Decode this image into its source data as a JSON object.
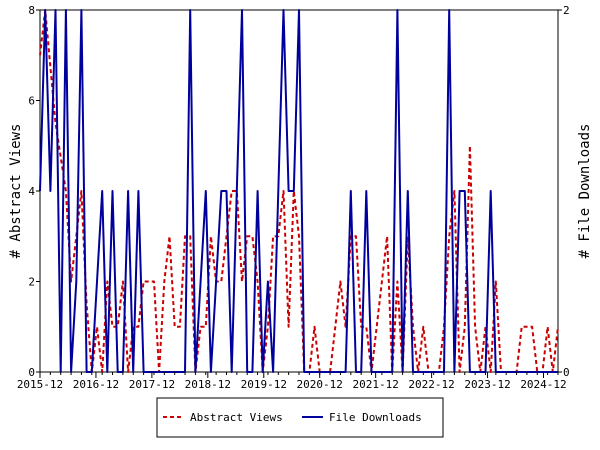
{
  "chart_data": {
    "type": "line",
    "title": "",
    "xlabel": "",
    "ylabel_left": "# Abstract Views",
    "ylabel_right": "# File Downloads",
    "x_ticks": [
      "2015-12",
      "2016-12",
      "2017-12",
      "2018-12",
      "2019-12",
      "2020-12",
      "2021-12",
      "2022-12",
      "2023-12",
      "2024-12"
    ],
    "ylim_left": [
      0,
      8
    ],
    "ylim_right": [
      0,
      2
    ],
    "y_ticks_left": [
      "0",
      "2",
      "4",
      "6",
      "8"
    ],
    "y_ticks_right": [
      "0",
      "2"
    ],
    "grid": false,
    "legend_position": "bottom",
    "series": [
      {
        "name": "Abstract Views",
        "axis": "left",
        "color": "#cc0000",
        "style": "dashed",
        "points": [
          [
            0,
            7
          ],
          [
            0.5,
            8
          ],
          [
            1.5,
            5.5
          ],
          [
            2.5,
            4
          ],
          [
            3,
            2
          ],
          [
            3.5,
            3
          ],
          [
            4,
            4
          ],
          [
            4.5,
            1.5
          ],
          [
            5,
            0
          ],
          [
            5.5,
            1
          ],
          [
            6,
            0
          ],
          [
            6.5,
            2
          ],
          [
            7,
            1
          ],
          [
            7.5,
            1
          ],
          [
            8,
            2
          ],
          [
            8.5,
            0
          ],
          [
            9,
            1
          ],
          [
            9.5,
            1
          ],
          [
            10,
            2
          ],
          [
            11,
            2
          ],
          [
            11.5,
            0
          ],
          [
            12,
            2
          ],
          [
            12.5,
            3
          ],
          [
            13,
            1
          ],
          [
            13.5,
            1
          ],
          [
            14,
            3
          ],
          [
            14.5,
            3
          ],
          [
            15,
            0
          ],
          [
            15.5,
            1
          ],
          [
            16,
            1
          ],
          [
            16.5,
            3
          ],
          [
            17,
            2
          ],
          [
            17.5,
            2
          ],
          [
            18,
            3
          ],
          [
            18.5,
            4
          ],
          [
            19,
            4
          ],
          [
            19.5,
            2
          ],
          [
            20,
            3
          ],
          [
            20.5,
            3
          ],
          [
            21,
            2
          ],
          [
            21.5,
            0
          ],
          [
            22,
            1
          ],
          [
            22.5,
            3
          ],
          [
            23,
            3
          ],
          [
            23.5,
            4
          ],
          [
            24,
            1
          ],
          [
            24.5,
            4
          ],
          [
            25,
            3
          ],
          [
            25.5,
            0
          ],
          [
            26,
            0
          ],
          [
            26.5,
            1
          ],
          [
            27,
            0
          ],
          [
            28,
            0
          ],
          [
            28.5,
            1
          ],
          [
            29,
            2
          ],
          [
            29.5,
            1
          ],
          [
            30,
            3
          ],
          [
            30.5,
            3
          ],
          [
            31,
            1
          ],
          [
            31.5,
            1
          ],
          [
            32,
            0
          ],
          [
            32.5,
            1
          ],
          [
            33,
            2
          ],
          [
            33.5,
            3
          ],
          [
            34,
            0
          ],
          [
            34.5,
            2
          ],
          [
            35,
            0
          ],
          [
            35.5,
            3
          ],
          [
            36,
            1
          ],
          [
            36.5,
            0
          ],
          [
            37,
            1
          ],
          [
            37.5,
            0
          ],
          [
            38.5,
            0
          ],
          [
            39,
            1
          ],
          [
            39.5,
            3
          ],
          [
            40,
            4
          ],
          [
            40.5,
            0
          ],
          [
            41,
            1
          ],
          [
            41.5,
            5
          ],
          [
            42,
            1
          ],
          [
            42.5,
            0
          ],
          [
            43,
            1
          ],
          [
            43.5,
            0
          ],
          [
            44,
            2
          ],
          [
            44.5,
            0
          ],
          [
            45,
            0
          ],
          [
            45.5,
            0
          ],
          [
            46,
            0
          ],
          [
            46.5,
            1
          ],
          [
            47.5,
            1
          ],
          [
            48,
            0
          ],
          [
            48.5,
            0
          ],
          [
            49,
            1
          ],
          [
            49.5,
            0
          ],
          [
            50,
            1
          ]
        ]
      },
      {
        "name": "File Downloads",
        "axis": "right",
        "color": "#00009c",
        "style": "solid",
        "points": [
          [
            0,
            1
          ],
          [
            0.5,
            2
          ],
          [
            1,
            1
          ],
          [
            1.5,
            2
          ],
          [
            2,
            0
          ],
          [
            2.5,
            2
          ],
          [
            3,
            0
          ],
          [
            3.5,
            0.5
          ],
          [
            4,
            2
          ],
          [
            4.5,
            0
          ],
          [
            5,
            0
          ],
          [
            5.5,
            0.5
          ],
          [
            6,
            1
          ],
          [
            6.5,
            0
          ],
          [
            7,
            1
          ],
          [
            7.5,
            0
          ],
          [
            8,
            0
          ],
          [
            8.5,
            1
          ],
          [
            9,
            0
          ],
          [
            9.5,
            1
          ],
          [
            10,
            0
          ],
          [
            10.5,
            0
          ],
          [
            11,
            0
          ],
          [
            11.5,
            0
          ],
          [
            12,
            0
          ],
          [
            12.5,
            0
          ],
          [
            13,
            0
          ],
          [
            13.5,
            0
          ],
          [
            14,
            0
          ],
          [
            14.5,
            2
          ],
          [
            15,
            0
          ],
          [
            15.5,
            0.5
          ],
          [
            16,
            1
          ],
          [
            16.5,
            0
          ],
          [
            17,
            0.5
          ],
          [
            17.5,
            1
          ],
          [
            18,
            1
          ],
          [
            18.5,
            0
          ],
          [
            19,
            1
          ],
          [
            19.5,
            2
          ],
          [
            20,
            0
          ],
          [
            20.5,
            0
          ],
          [
            21,
            1
          ],
          [
            21.5,
            0
          ],
          [
            22,
            0.5
          ],
          [
            22.5,
            0
          ],
          [
            23,
            1
          ],
          [
            23.5,
            2
          ],
          [
            24,
            1
          ],
          [
            24.5,
            1
          ],
          [
            25,
            2
          ],
          [
            25.5,
            0
          ],
          [
            26,
            0
          ],
          [
            26.5,
            0
          ],
          [
            27,
            0
          ],
          [
            27.5,
            0
          ],
          [
            28,
            0
          ],
          [
            28.5,
            0
          ],
          [
            29,
            0
          ],
          [
            29.5,
            0
          ],
          [
            30,
            1
          ],
          [
            30.5,
            0
          ],
          [
            31,
            0
          ],
          [
            31.5,
            1
          ],
          [
            32,
            0
          ],
          [
            32.5,
            0
          ],
          [
            33,
            0
          ],
          [
            33.5,
            0
          ],
          [
            34,
            0
          ],
          [
            34.5,
            2
          ],
          [
            35,
            0
          ],
          [
            35.5,
            1
          ],
          [
            36,
            0
          ],
          [
            36.5,
            0
          ],
          [
            37,
            0
          ],
          [
            37.5,
            0
          ],
          [
            38,
            0
          ],
          [
            38.5,
            0
          ],
          [
            39,
            0
          ],
          [
            39.5,
            2
          ],
          [
            40,
            0
          ],
          [
            40.5,
            1
          ],
          [
            41,
            1
          ],
          [
            41.5,
            0
          ],
          [
            42,
            0
          ],
          [
            42.5,
            0
          ],
          [
            43,
            0
          ],
          [
            43.5,
            1
          ],
          [
            44,
            0
          ],
          [
            44.5,
            0
          ],
          [
            45,
            0
          ],
          [
            45.5,
            0
          ],
          [
            46,
            0
          ],
          [
            46.5,
            0
          ],
          [
            47,
            0
          ],
          [
            47.5,
            0
          ],
          [
            48,
            0
          ],
          [
            48.5,
            0
          ],
          [
            49,
            0
          ],
          [
            49.5,
            0
          ],
          [
            50,
            0
          ]
        ]
      }
    ]
  }
}
